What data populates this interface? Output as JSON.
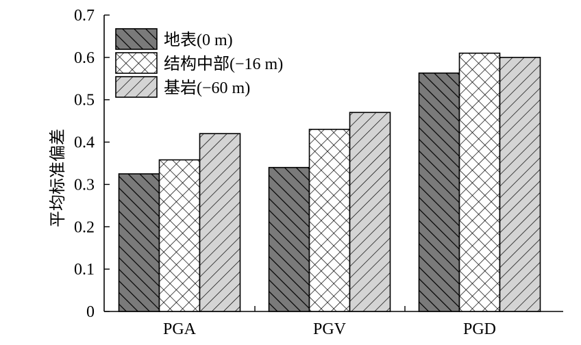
{
  "chart_data": {
    "type": "bar",
    "title": "",
    "xlabel": "",
    "ylabel": "平均标准偏差",
    "categories": [
      "PGA",
      "PGV",
      "PGD"
    ],
    "series": [
      {
        "name": "地表(0 m)",
        "values": [
          0.325,
          0.34,
          0.563
        ],
        "fill": "#7a7a7a",
        "pattern": "backslash-hatch"
      },
      {
        "name": "结构中部(−16 m)",
        "values": [
          0.358,
          0.43,
          0.61
        ],
        "fill": "#ffffff",
        "pattern": "crosshatch"
      },
      {
        "name": "基岩(−60 m)",
        "values": [
          0.42,
          0.47,
          0.6
        ],
        "fill": "#d4d4d4",
        "pattern": "slash-hatch"
      }
    ],
    "ylim": [
      0,
      0.7
    ],
    "yticks": [
      "0",
      "0.1",
      "0.2",
      "0.3",
      "0.4",
      "0.5",
      "0.6",
      "0.7"
    ],
    "grid": false,
    "legend_position": "top-left"
  }
}
